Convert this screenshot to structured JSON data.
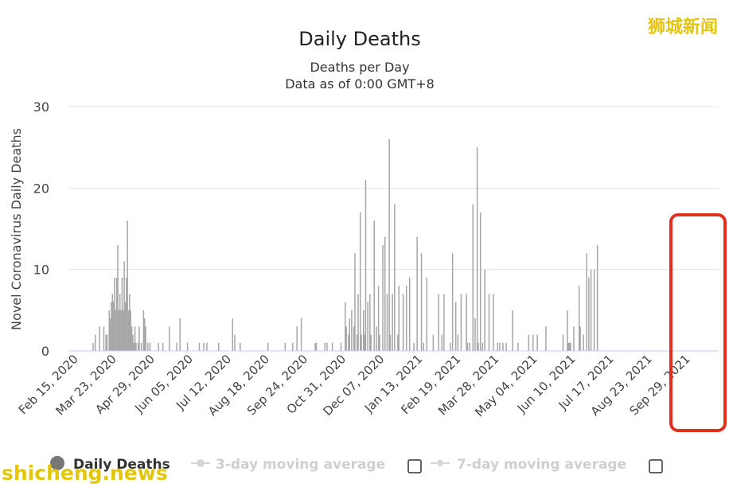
{
  "chart_data": {
    "type": "bar",
    "title": "Daily Deaths",
    "subtitle": "Deaths per Day",
    "subtitle2": "Data as of 0:00 GMT+8",
    "ylabel": "Novel Coronavirus Daily Deaths",
    "ylim": [
      0,
      30
    ],
    "yticks": [
      0,
      10,
      20,
      30
    ],
    "x_start": "2020-02-15",
    "x_end": "2021-10-13",
    "x_tick_labels": [
      "Feb 15, 2020",
      "Mar 23, 2020",
      "Apr 29, 2020",
      "Jun 05, 2020",
      "Jul 12, 2020",
      "Aug 18, 2020",
      "Sep 24, 2020",
      "Oct 31, 2020",
      "Dec 07, 2020",
      "Jan 13, 2021",
      "Feb 19, 2021",
      "Mar 28, 2021",
      "May 04, 2021",
      "Jun 10, 2021",
      "Jul 17, 2021",
      "Aug 23, 2021",
      "Sep 29, 2021"
    ],
    "series": [
      {
        "name": "Daily Deaths",
        "points": [
          {
            "d": "2020-03-09",
            "v": 1
          },
          {
            "d": "2020-03-11",
            "v": 2
          },
          {
            "d": "2020-03-15",
            "v": 3
          },
          {
            "d": "2020-03-19",
            "v": 3
          },
          {
            "d": "2020-03-21",
            "v": 2
          },
          {
            "d": "2020-03-22",
            "v": 2
          },
          {
            "d": "2020-03-24",
            "v": 5
          },
          {
            "d": "2020-03-25",
            "v": 4
          },
          {
            "d": "2020-03-26",
            "v": 6
          },
          {
            "d": "2020-03-27",
            "v": 7
          },
          {
            "d": "2020-03-28",
            "v": 6
          },
          {
            "d": "2020-03-29",
            "v": 9
          },
          {
            "d": "2020-03-30",
            "v": 5
          },
          {
            "d": "2020-03-31",
            "v": 9
          },
          {
            "d": "2020-04-01",
            "v": 13
          },
          {
            "d": "2020-04-02",
            "v": 5
          },
          {
            "d": "2020-04-03",
            "v": 7
          },
          {
            "d": "2020-04-04",
            "v": 5
          },
          {
            "d": "2020-04-05",
            "v": 9
          },
          {
            "d": "2020-04-06",
            "v": 5
          },
          {
            "d": "2020-04-07",
            "v": 11
          },
          {
            "d": "2020-04-08",
            "v": 6
          },
          {
            "d": "2020-04-09",
            "v": 9
          },
          {
            "d": "2020-04-10",
            "v": 16
          },
          {
            "d": "2020-04-11",
            "v": 5
          },
          {
            "d": "2020-04-12",
            "v": 7
          },
          {
            "d": "2020-04-13",
            "v": 5
          },
          {
            "d": "2020-04-14",
            "v": 3
          },
          {
            "d": "2020-04-15",
            "v": 2
          },
          {
            "d": "2020-04-16",
            "v": 1
          },
          {
            "d": "2020-04-17",
            "v": 3
          },
          {
            "d": "2020-04-18",
            "v": 1
          },
          {
            "d": "2020-04-20",
            "v": 1
          },
          {
            "d": "2020-04-21",
            "v": 3
          },
          {
            "d": "2020-04-23",
            "v": 1
          },
          {
            "d": "2020-04-25",
            "v": 5
          },
          {
            "d": "2020-04-26",
            "v": 4
          },
          {
            "d": "2020-04-27",
            "v": 3
          },
          {
            "d": "2020-04-29",
            "v": 1
          },
          {
            "d": "2020-05-01",
            "v": 1
          },
          {
            "d": "2020-05-09",
            "v": 1
          },
          {
            "d": "2020-05-13",
            "v": 1
          },
          {
            "d": "2020-05-19",
            "v": 3
          },
          {
            "d": "2020-05-26",
            "v": 1
          },
          {
            "d": "2020-05-29",
            "v": 4
          },
          {
            "d": "2020-06-05",
            "v": 1
          },
          {
            "d": "2020-06-16",
            "v": 1
          },
          {
            "d": "2020-06-20",
            "v": 1
          },
          {
            "d": "2020-06-23",
            "v": 1
          },
          {
            "d": "2020-07-04",
            "v": 1
          },
          {
            "d": "2020-07-17",
            "v": 4
          },
          {
            "d": "2020-07-19",
            "v": 2
          },
          {
            "d": "2020-07-24",
            "v": 1
          },
          {
            "d": "2020-08-19",
            "v": 1
          },
          {
            "d": "2020-09-04",
            "v": 1
          },
          {
            "d": "2020-09-11",
            "v": 1
          },
          {
            "d": "2020-09-15",
            "v": 3
          },
          {
            "d": "2020-09-19",
            "v": 4
          },
          {
            "d": "2020-10-02",
            "v": 1
          },
          {
            "d": "2020-10-03",
            "v": 1
          },
          {
            "d": "2020-10-11",
            "v": 1
          },
          {
            "d": "2020-10-13",
            "v": 1
          },
          {
            "d": "2020-10-18",
            "v": 1
          },
          {
            "d": "2020-10-26",
            "v": 1
          },
          {
            "d": "2020-10-30",
            "v": 6
          },
          {
            "d": "2020-10-31",
            "v": 3
          },
          {
            "d": "2020-11-02",
            "v": 2
          },
          {
            "d": "2020-11-03",
            "v": 4
          },
          {
            "d": "2020-11-05",
            "v": 5
          },
          {
            "d": "2020-11-07",
            "v": 3
          },
          {
            "d": "2020-11-08",
            "v": 12
          },
          {
            "d": "2020-11-10",
            "v": 2
          },
          {
            "d": "2020-11-11",
            "v": 7
          },
          {
            "d": "2020-11-13",
            "v": 17
          },
          {
            "d": "2020-11-14",
            "v": 2
          },
          {
            "d": "2020-11-16",
            "v": 5
          },
          {
            "d": "2020-11-17",
            "v": 2
          },
          {
            "d": "2020-11-18",
            "v": 21
          },
          {
            "d": "2020-11-20",
            "v": 6
          },
          {
            "d": "2020-11-22",
            "v": 7
          },
          {
            "d": "2020-11-23",
            "v": 2
          },
          {
            "d": "2020-11-26",
            "v": 16
          },
          {
            "d": "2020-11-28",
            "v": 3
          },
          {
            "d": "2020-11-30",
            "v": 8
          },
          {
            "d": "2020-12-01",
            "v": 2
          },
          {
            "d": "2020-12-04",
            "v": 13
          },
          {
            "d": "2020-12-06",
            "v": 14
          },
          {
            "d": "2020-12-08",
            "v": 7
          },
          {
            "d": "2020-12-10",
            "v": 26
          },
          {
            "d": "2020-12-11",
            "v": 2
          },
          {
            "d": "2020-12-13",
            "v": 7
          },
          {
            "d": "2020-12-15",
            "v": 18
          },
          {
            "d": "2020-12-18",
            "v": 2
          },
          {
            "d": "2020-12-19",
            "v": 8
          },
          {
            "d": "2020-12-23",
            "v": 7
          },
          {
            "d": "2020-12-26",
            "v": 8
          },
          {
            "d": "2020-12-29",
            "v": 9
          },
          {
            "d": "2021-01-02",
            "v": 1
          },
          {
            "d": "2021-01-05",
            "v": 14
          },
          {
            "d": "2021-01-09",
            "v": 12
          },
          {
            "d": "2021-01-11",
            "v": 1
          },
          {
            "d": "2021-01-14",
            "v": 9
          },
          {
            "d": "2021-01-20",
            "v": 2
          },
          {
            "d": "2021-01-25",
            "v": 7
          },
          {
            "d": "2021-01-28",
            "v": 2
          },
          {
            "d": "2021-01-30",
            "v": 7
          },
          {
            "d": "2021-02-05",
            "v": 1
          },
          {
            "d": "2021-02-07",
            "v": 12
          },
          {
            "d": "2021-02-10",
            "v": 6
          },
          {
            "d": "2021-02-12",
            "v": 2
          },
          {
            "d": "2021-02-15",
            "v": 7
          },
          {
            "d": "2021-02-20",
            "v": 7
          },
          {
            "d": "2021-02-21",
            "v": 1
          },
          {
            "d": "2021-02-23",
            "v": 1
          },
          {
            "d": "2021-02-26",
            "v": 18
          },
          {
            "d": "2021-02-28",
            "v": 4
          },
          {
            "d": "2021-03-02",
            "v": 25
          },
          {
            "d": "2021-03-03",
            "v": 1
          },
          {
            "d": "2021-03-05",
            "v": 17
          },
          {
            "d": "2021-03-07",
            "v": 1
          },
          {
            "d": "2021-03-09",
            "v": 10
          },
          {
            "d": "2021-03-13",
            "v": 7
          },
          {
            "d": "2021-03-17",
            "v": 7
          },
          {
            "d": "2021-03-21",
            "v": 1
          },
          {
            "d": "2021-03-23",
            "v": 1
          },
          {
            "d": "2021-03-26",
            "v": 1
          },
          {
            "d": "2021-03-29",
            "v": 1
          },
          {
            "d": "2021-04-04",
            "v": 5
          },
          {
            "d": "2021-04-09",
            "v": 1
          },
          {
            "d": "2021-04-19",
            "v": 2
          },
          {
            "d": "2021-04-23",
            "v": 2
          },
          {
            "d": "2021-04-27",
            "v": 2
          },
          {
            "d": "2021-05-05",
            "v": 3
          },
          {
            "d": "2021-05-21",
            "v": 2
          },
          {
            "d": "2021-05-25",
            "v": 5
          },
          {
            "d": "2021-05-26",
            "v": 1
          },
          {
            "d": "2021-05-27",
            "v": 1
          },
          {
            "d": "2021-05-28",
            "v": 1
          },
          {
            "d": "2021-05-31",
            "v": 3
          },
          {
            "d": "2021-06-05",
            "v": 8
          },
          {
            "d": "2021-06-06",
            "v": 3
          },
          {
            "d": "2021-06-09",
            "v": 2
          },
          {
            "d": "2021-06-12",
            "v": 12
          },
          {
            "d": "2021-06-14",
            "v": 9
          },
          {
            "d": "2021-06-16",
            "v": 10
          },
          {
            "d": "2021-06-19",
            "v": 10
          },
          {
            "d": "2021-06-22",
            "v": 13
          }
        ]
      }
    ],
    "legend": [
      {
        "label": "Daily Deaths",
        "active": true
      },
      {
        "label": "3-day moving average",
        "active": false
      },
      {
        "label": "7-day moving average",
        "active": false
      }
    ],
    "highlight_box": {
      "color": "#e0311f"
    }
  },
  "watermarks": {
    "top_right": "狮城新闻",
    "bottom_left": "shicheng.news"
  },
  "colors": {
    "bar": "#a6a6a6",
    "legend_active": "#333333",
    "legend_inactive": "#cfcfcf",
    "highlight": "#e0311f",
    "watermark": "#e3c60a"
  }
}
